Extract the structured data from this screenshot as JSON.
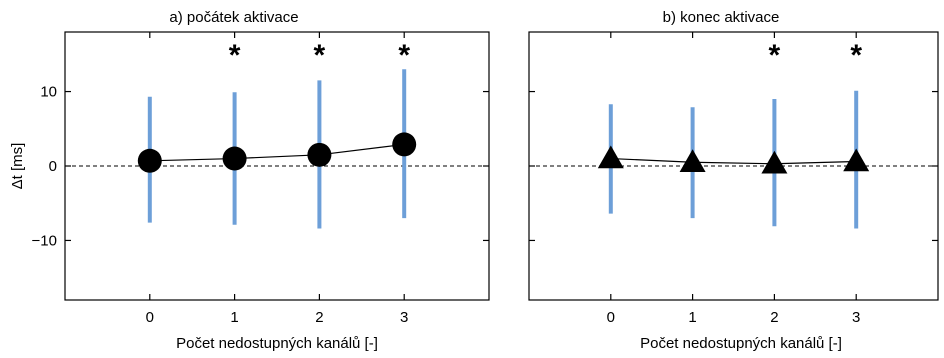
{
  "chart_data": [
    {
      "type": "scatter",
      "title": "a) počátek aktivace",
      "xlabel": "Počet nedostupných kanálů [-]",
      "ylabel": "Δt [ms]",
      "xlim": [
        -1,
        4
      ],
      "ylim": [
        -18,
        18
      ],
      "xticks": [
        "0",
        "1",
        "2",
        "3"
      ],
      "yticks": [
        "10",
        "0",
        "−10"
      ],
      "ytick_values": [
        10,
        0,
        -10
      ],
      "marker": "circle",
      "reference_line_y": 0,
      "x": [
        0,
        1,
        2,
        3
      ],
      "mean": [
        0.7,
        1.0,
        1.5,
        2.9
      ],
      "lower": [
        -7.6,
        -7.9,
        -8.4,
        -7.0
      ],
      "upper": [
        9.3,
        9.9,
        11.5,
        13.0
      ],
      "significance": [
        "",
        "*",
        "*",
        "*"
      ]
    },
    {
      "type": "scatter",
      "title": "b) konec aktivace",
      "xlabel": "Počet nedostupných kanálů [-]",
      "ylabel": "",
      "xlim": [
        -1,
        4
      ],
      "ylim": [
        -18,
        18
      ],
      "xticks": [
        "0",
        "1",
        "2",
        "3"
      ],
      "yticks": [],
      "ytick_values": [
        10,
        0,
        -10
      ],
      "marker": "triangle",
      "reference_line_y": 0,
      "x": [
        0,
        1,
        2,
        3
      ],
      "mean": [
        1.0,
        0.5,
        0.3,
        0.6
      ],
      "lower": [
        -6.4,
        -7.0,
        -8.1,
        -8.4
      ],
      "upper": [
        8.3,
        7.9,
        9.0,
        10.1
      ],
      "significance": [
        "",
        "",
        "*",
        "*"
      ]
    }
  ],
  "colors": {
    "error_bar": "#6d9fd8",
    "marker": "#000000",
    "axis": "#000000"
  }
}
